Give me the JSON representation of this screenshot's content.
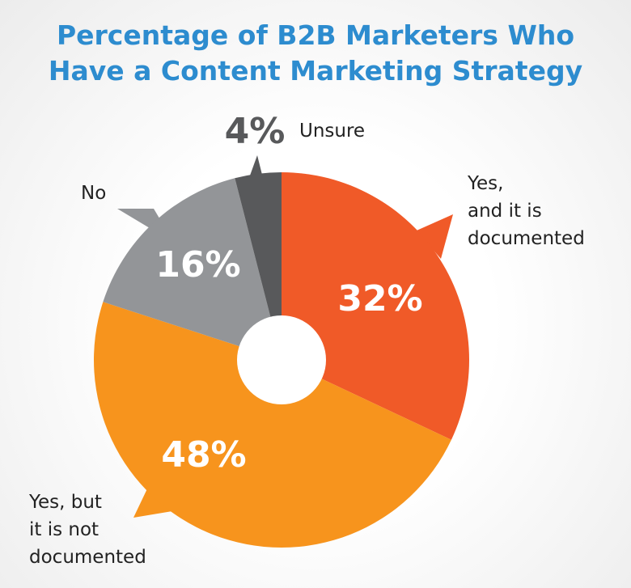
{
  "chart_data": {
    "type": "pie",
    "title": "Percentage of B2B Marketers Who\nHave a Content Marketing Strategy",
    "categories": [
      "Yes,\nand it is\ndocumented",
      "Yes, but\nit is not\ndocumented",
      "No",
      "Unsure"
    ],
    "values": [
      32,
      48,
      16,
      4
    ],
    "value_labels": [
      "32%",
      "48%",
      "16%",
      "4%"
    ],
    "colors": [
      "#f05a28",
      "#f7941d",
      "#939598",
      "#58595b"
    ],
    "donut": true
  }
}
